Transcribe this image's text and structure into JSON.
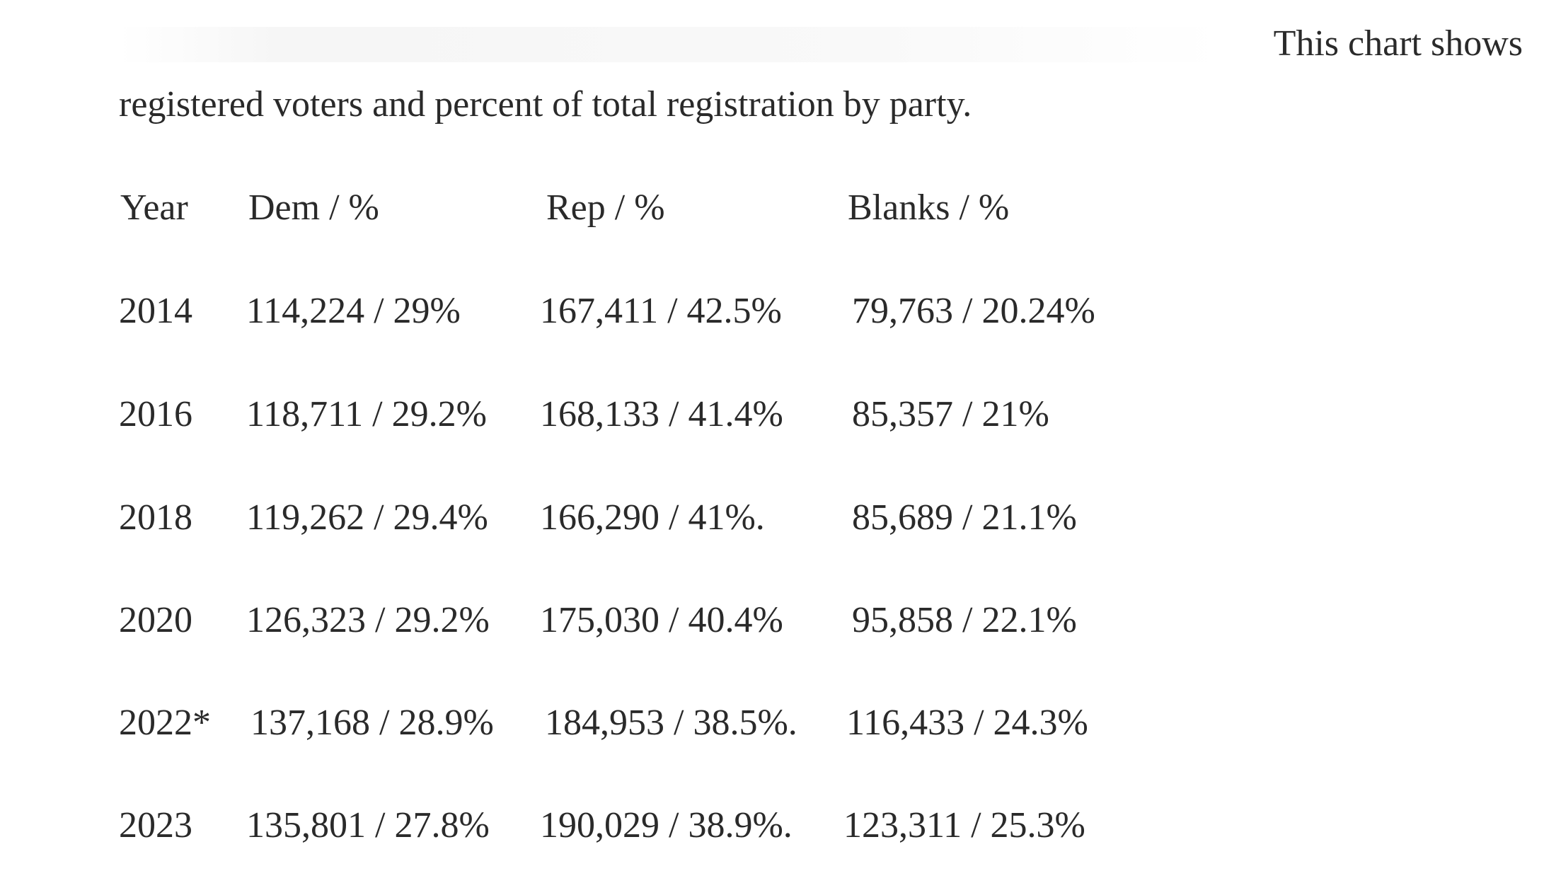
{
  "intro": {
    "tail": "This chart shows",
    "line": "registered voters and percent of total registration by party."
  },
  "table": {
    "headers": [
      "Year",
      "Dem / %",
      "Rep / %",
      "Blanks / %"
    ],
    "rows": [
      [
        "2014",
        "114,224 /  29%",
        "167,411 / 42.5%",
        "79,763 / 20.24%"
      ],
      [
        "2016",
        "118,711 / 29.2%",
        "168,133 / 41.4%",
        "85,357 / 21%"
      ],
      [
        "2018",
        "119,262 / 29.4%",
        "166,290 / 41%.",
        "85,689 / 21.1%"
      ],
      [
        "2020",
        "126,323 / 29.2%",
        "175,030 / 40.4%",
        "95,858 / 22.1%"
      ],
      [
        "2022*",
        "137,168 / 28.9%",
        "184,953 / 38.5%.",
        "116,433 / 24.3%"
      ],
      [
        "2023",
        "135,801 / 27.8%",
        "190,029 / 38.9%.",
        "123,311 / 25.3%"
      ]
    ]
  }
}
